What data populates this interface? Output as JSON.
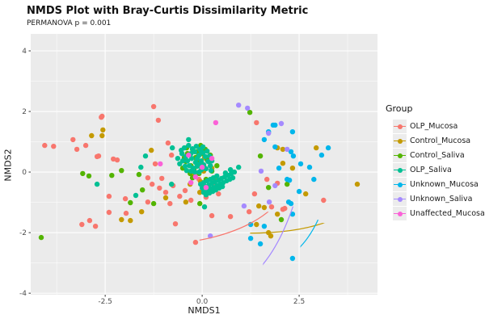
{
  "title": "NMDS Plot with Bray-Curtis Dissimilarity Metric",
  "subtitle": "PERMANOVA p = 0.001",
  "legend": {
    "title": "Group"
  },
  "colors": {
    "panel_bg": "#EBEBEB",
    "grid": "#FFFFFF",
    "tick_text": "#4d4d4d",
    "axis_text": "#1a1a1a",
    "legend_key_bg": "#ececec"
  },
  "chart_data": {
    "type": "scatter",
    "title": "NMDS Plot with Bray-Curtis Dissimilarity Metric",
    "subtitle": "PERMANOVA p = 0.001",
    "xlabel": "NMDS1",
    "ylabel": "NMDS2",
    "xlim": [
      -4.42,
      4.52
    ],
    "ylim": [
      -4.05,
      4.56
    ],
    "x_ticks": [
      -2.5,
      0.0,
      2.5
    ],
    "x_tick_labels": [
      "-2.5",
      "0.0",
      "2.5"
    ],
    "x_minor": [
      -3.75,
      -1.25,
      1.25,
      3.75
    ],
    "y_ticks": [
      -4,
      -2,
      0,
      2,
      4
    ],
    "y_tick_labels": [
      "-4",
      "-2",
      "0",
      "2",
      "4"
    ],
    "y_minor": [
      -3,
      -1,
      1,
      3
    ],
    "grid": true,
    "legend_position": "right",
    "legend_title": "Group",
    "series": [
      {
        "name": "OLP_Mucosa",
        "color": "#F8766D",
        "ellipse": {
          "cx": -0.94,
          "cy": -0.37,
          "rx": 3.13,
          "ry": 2.0,
          "rot": -3
        },
        "points": [
          [
            -2.58,
            1.84
          ],
          [
            -3.33,
            1.07
          ],
          [
            -4.06,
            0.88
          ],
          [
            -3.83,
            0.85
          ],
          [
            -3.0,
            0.88
          ],
          [
            -3.23,
            0.75
          ],
          [
            -2.71,
            0.51
          ],
          [
            -2.29,
            0.43
          ],
          [
            -2.19,
            0.4
          ],
          [
            -3.1,
            -1.73
          ],
          [
            -2.9,
            -1.6
          ],
          [
            -2.75,
            -1.79
          ],
          [
            -2.4,
            -1.33
          ],
          [
            -1.96,
            -1.36
          ],
          [
            -2.4,
            -0.8
          ],
          [
            -1.98,
            -0.88
          ],
          [
            -1.4,
            -0.99
          ],
          [
            -1.25,
            2.16
          ],
          [
            -1.13,
            1.71
          ],
          [
            -2.6,
            1.81
          ],
          [
            -2.67,
            0.53
          ],
          [
            -0.88,
            0.96
          ],
          [
            -0.79,
            0.56
          ],
          [
            -1.4,
            -0.19
          ],
          [
            -1.21,
            0.27
          ],
          [
            -0.69,
            -1.71
          ],
          [
            -0.17,
            -2.32
          ],
          [
            0.25,
            -1.44
          ],
          [
            0.73,
            -1.47
          ],
          [
            1.21,
            -1.31
          ],
          [
            1.67,
            -0.24
          ],
          [
            1.94,
            -0.37
          ],
          [
            1.35,
            -0.72
          ],
          [
            2.13,
            -1.2
          ],
          [
            3.13,
            -0.93
          ],
          [
            2.08,
            -1.23
          ],
          [
            1.79,
            -1.15
          ],
          [
            1.4,
            1.63
          ],
          [
            -1.29,
            -0.4
          ],
          [
            -1.1,
            -0.53
          ],
          [
            -0.94,
            -0.67
          ],
          [
            -0.75,
            -0.45
          ],
          [
            -0.58,
            -0.8
          ],
          [
            -0.44,
            -0.61
          ],
          [
            -0.29,
            -0.93
          ],
          [
            -0.83,
            -1.04
          ],
          [
            -1.04,
            -0.21
          ],
          [
            -0.08,
            -0.24
          ],
          [
            0.1,
            -0.83
          ],
          [
            0.29,
            -0.35
          ],
          [
            0.42,
            -0.72
          ],
          [
            0.02,
            -0.45
          ]
        ]
      },
      {
        "name": "Control_Mucosa",
        "color": "#C49A00",
        "ellipse": {
          "cx": 0.56,
          "cy": -0.27,
          "rx": 3.52,
          "ry": 1.71,
          "rot": 5
        },
        "points": [
          [
            -2.85,
            1.2
          ],
          [
            -2.56,
            1.39
          ],
          [
            -2.58,
            1.2
          ],
          [
            -1.31,
            0.72
          ],
          [
            -2.08,
            -1.57
          ],
          [
            -1.85,
            -1.6
          ],
          [
            -0.42,
            -0.99
          ],
          [
            1.46,
            -1.12
          ],
          [
            1.6,
            -1.17
          ],
          [
            1.4,
            -1.73
          ],
          [
            1.71,
            -2.0
          ],
          [
            1.94,
            -1.39
          ],
          [
            1.77,
            -2.11
          ],
          [
            1.94,
            0.8
          ],
          [
            2.08,
            0.75
          ],
          [
            2.08,
            0.29
          ],
          [
            2.33,
            0.13
          ],
          [
            2.67,
            -0.72
          ],
          [
            -0.1,
            0.21
          ],
          [
            0.04,
            0.03
          ],
          [
            -0.04,
            -0.32
          ],
          [
            0.1,
            -0.51
          ],
          [
            0.25,
            0.13
          ],
          [
            -0.21,
            -0.13
          ],
          [
            -0.31,
            -0.4
          ],
          [
            0.17,
            0.35
          ],
          [
            0.31,
            -0.19
          ],
          [
            0.42,
            -0.51
          ],
          [
            -0.06,
            -0.67
          ],
          [
            0.06,
            0.48
          ],
          [
            2.94,
            0.8
          ],
          [
            4.0,
            -0.4
          ],
          [
            -1.56,
            -1.31
          ],
          [
            -0.94,
            -0.85
          ]
        ]
      },
      {
        "name": "Control_Saliva",
        "color": "#53B400",
        "ellipse": {
          "cx": 0.0,
          "cy": -0.03,
          "rx": 1.42,
          "ry": 1.09,
          "rot": -4
        },
        "points": [
          [
            -4.15,
            -2.16
          ],
          [
            -3.08,
            -0.05
          ],
          [
            -2.92,
            -0.13
          ],
          [
            -2.33,
            -0.11
          ],
          [
            -2.08,
            0.05
          ],
          [
            -1.63,
            -0.08
          ],
          [
            -1.54,
            -0.59
          ],
          [
            -1.85,
            -1.01
          ],
          [
            -1.25,
            -1.04
          ],
          [
            -0.1,
            0.53
          ],
          [
            1.23,
            1.97
          ],
          [
            1.5,
            0.53
          ],
          [
            1.71,
            -0.51
          ],
          [
            2.04,
            -1.57
          ],
          [
            -0.06,
            -1.04
          ],
          [
            -0.38,
            0.61
          ],
          [
            -0.25,
            0.75
          ],
          [
            -0.17,
            0.48
          ],
          [
            -0.42,
            0.35
          ],
          [
            -0.29,
            0.21
          ],
          [
            -0.13,
            0.67
          ],
          [
            -0.46,
            0.48
          ],
          [
            -0.21,
            0.08
          ],
          [
            -0.08,
            -0.05
          ],
          [
            0.0,
            0.61
          ],
          [
            -0.31,
            -0.05
          ],
          [
            -0.5,
            0.13
          ],
          [
            0.04,
            0.21
          ],
          [
            -0.4,
            0.8
          ],
          [
            -0.15,
            0.35
          ],
          [
            -0.04,
            0.88
          ],
          [
            0.08,
            0.75
          ],
          [
            0.13,
            0.4
          ],
          [
            0.21,
            0.56
          ],
          [
            -0.25,
            -0.19
          ],
          [
            0.1,
            -0.24
          ],
          [
            0.25,
            0.03
          ],
          [
            0.38,
            0.21
          ],
          [
            2.19,
            -0.4
          ]
        ]
      },
      {
        "name": "OLP_Saliva",
        "color": "#00C094",
        "ellipse": {
          "cx": 0.02,
          "cy": 0.11,
          "rx": 0.98,
          "ry": 0.88,
          "rot": -10
        },
        "points": [
          [
            -0.46,
            0.8
          ],
          [
            -0.35,
            0.88
          ],
          [
            -0.25,
            0.77
          ],
          [
            -0.15,
            0.85
          ],
          [
            -0.04,
            0.72
          ],
          [
            -0.29,
            0.61
          ],
          [
            -0.19,
            0.67
          ],
          [
            -0.08,
            0.56
          ],
          [
            0.02,
            0.64
          ],
          [
            -0.42,
            0.51
          ],
          [
            -0.52,
            0.61
          ],
          [
            -0.13,
            0.45
          ],
          [
            -0.02,
            0.37
          ],
          [
            0.08,
            0.51
          ],
          [
            -0.38,
            0.37
          ],
          [
            -0.27,
            0.45
          ],
          [
            -0.17,
            0.32
          ],
          [
            -0.06,
            0.27
          ],
          [
            -0.5,
            0.37
          ],
          [
            0.04,
            0.24
          ],
          [
            0.15,
            0.35
          ],
          [
            -0.33,
            0.21
          ],
          [
            -0.23,
            0.13
          ],
          [
            -0.13,
            0.19
          ],
          [
            -0.02,
            0.08
          ],
          [
            -0.44,
            0.19
          ],
          [
            0.1,
            0.11
          ],
          [
            0.21,
            0.21
          ],
          [
            -0.29,
            0.03
          ],
          [
            -0.19,
            0.0
          ],
          [
            -0.4,
            0.05
          ],
          [
            -0.08,
            0.0
          ],
          [
            -0.54,
            0.72
          ],
          [
            0.19,
            0.53
          ],
          [
            0.25,
            0.37
          ],
          [
            -0.63,
            0.45
          ],
          [
            0.02,
            0.83
          ],
          [
            0.13,
            0.69
          ],
          [
            -0.58,
            0.27
          ],
          [
            0.23,
            0.05
          ],
          [
            0.0,
            -0.53
          ],
          [
            0.08,
            -0.48
          ],
          [
            0.17,
            -0.43
          ],
          [
            0.25,
            -0.37
          ],
          [
            0.33,
            -0.32
          ],
          [
            0.42,
            -0.27
          ],
          [
            0.5,
            -0.21
          ],
          [
            0.58,
            -0.16
          ],
          [
            0.67,
            -0.11
          ],
          [
            0.75,
            -0.05
          ],
          [
            0.04,
            -0.67
          ],
          [
            0.13,
            -0.61
          ],
          [
            0.21,
            -0.56
          ],
          [
            0.29,
            -0.51
          ],
          [
            0.38,
            -0.45
          ],
          [
            0.46,
            -0.4
          ],
          [
            0.54,
            -0.35
          ],
          [
            0.63,
            -0.29
          ],
          [
            0.71,
            -0.24
          ],
          [
            0.79,
            -0.19
          ],
          [
            0.1,
            -0.75
          ],
          [
            0.19,
            -0.69
          ],
          [
            0.27,
            -0.64
          ],
          [
            0.35,
            -0.59
          ],
          [
            0.44,
            -0.53
          ],
          [
            0.52,
            -0.48
          ],
          [
            -0.04,
            -0.4
          ],
          [
            0.04,
            -0.35
          ],
          [
            0.13,
            -0.29
          ],
          [
            0.21,
            -0.24
          ],
          [
            0.29,
            -0.19
          ],
          [
            0.38,
            -0.13
          ],
          [
            0.83,
            0.0
          ],
          [
            0.73,
            0.08
          ],
          [
            0.6,
            -0.03
          ],
          [
            -1.46,
            0.53
          ],
          [
            -0.77,
            0.8
          ],
          [
            -0.35,
            1.07
          ],
          [
            -0.06,
            0.75
          ],
          [
            -1.71,
            -0.77
          ],
          [
            -2.71,
            -0.4
          ],
          [
            -1.58,
            0.16
          ],
          [
            0.06,
            -1.15
          ],
          [
            0.94,
            0.16
          ],
          [
            -0.79,
            -0.4
          ]
        ]
      },
      {
        "name": "Unknown_Mucosa",
        "color": "#00B6EB",
        "ellipse": {
          "cx": 2.1,
          "cy": -0.19,
          "rx": 1.19,
          "ry": 2.83,
          "rot": 12
        },
        "points": [
          [
            1.6,
            1.07
          ],
          [
            1.88,
            1.55
          ],
          [
            2.33,
            1.33
          ],
          [
            2.29,
            0.67
          ],
          [
            2.54,
            0.27
          ],
          [
            2.25,
            -0.27
          ],
          [
            2.23,
            -0.99
          ],
          [
            2.33,
            -1.39
          ],
          [
            1.83,
            1.55
          ],
          [
            1.71,
            1.33
          ],
          [
            3.25,
            0.8
          ],
          [
            1.25,
            -1.73
          ],
          [
            1.6,
            -1.79
          ],
          [
            1.25,
            -2.19
          ],
          [
            1.5,
            -2.37
          ],
          [
            2.29,
            -1.04
          ],
          [
            2.33,
            -2.85
          ],
          [
            2.77,
            0.16
          ],
          [
            2.88,
            -0.24
          ],
          [
            2.35,
            0.53
          ],
          [
            1.88,
            0.83
          ],
          [
            2.19,
            -0.24
          ],
          [
            2.5,
            -0.64
          ],
          [
            1.98,
            0.13
          ],
          [
            3.08,
            0.56
          ]
        ]
      },
      {
        "name": "Unknown_Saliva",
        "color": "#A58AFF",
        "ellipse": {
          "cx": 1.31,
          "cy": 0.29,
          "rx": 1.29,
          "ry": 4.05,
          "rot": 12
        },
        "points": [
          [
            0.94,
            2.21
          ],
          [
            1.17,
            2.11
          ],
          [
            2.04,
            1.6
          ],
          [
            1.71,
            1.28
          ],
          [
            1.52,
            0.03
          ],
          [
            1.73,
            -0.99
          ],
          [
            1.08,
            -1.12
          ],
          [
            0.21,
            -2.11
          ],
          [
            2.19,
            0.75
          ],
          [
            1.88,
            -0.45
          ]
        ]
      },
      {
        "name": "Unaffected_Mucosa",
        "color": "#FB61D7",
        "ellipse": {
          "cx": -0.17,
          "cy": 0.29,
          "rx": 0.69,
          "ry": 3.15,
          "rot": 20
        },
        "points": [
          [
            0.35,
            1.63
          ],
          [
            -0.35,
            0.56
          ],
          [
            -1.08,
            0.27
          ],
          [
            0.1,
            -0.51
          ],
          [
            0.0,
            0.16
          ],
          [
            -0.17,
            -0.16
          ],
          [
            0.25,
            0.45
          ],
          [
            -0.29,
            -0.35
          ]
        ]
      }
    ]
  }
}
